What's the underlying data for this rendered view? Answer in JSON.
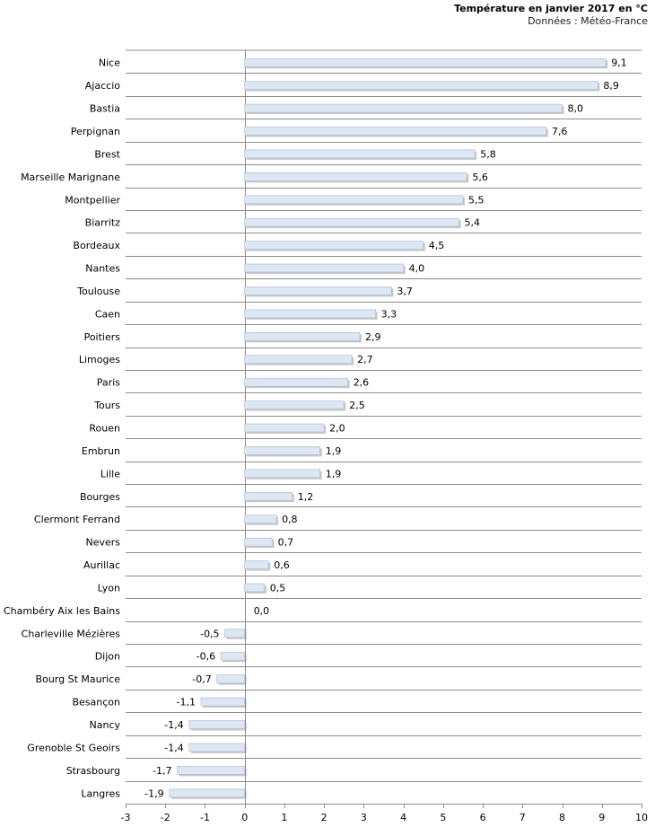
{
  "chart_data": {
    "type": "bar",
    "orientation": "horizontal",
    "title": "Température en janvier 2017 en °C",
    "subtitle": "Données : Météo-France",
    "xlabel": "",
    "ylabel": "",
    "xlim": [
      -3,
      10
    ],
    "xticks": [
      -3,
      -2,
      -1,
      0,
      1,
      2,
      3,
      4,
      5,
      6,
      7,
      8,
      9,
      10
    ],
    "xtick_labels": [
      "-3",
      "-2",
      "-1",
      "0",
      "1",
      "2",
      "3",
      "4",
      "5",
      "6",
      "7",
      "8",
      "9",
      "10"
    ],
    "grid": "horizontal lines between categories",
    "categories": [
      "Nice",
      "Ajaccio",
      "Bastia",
      "Perpignan",
      "Brest",
      "Marseille Marignane",
      "Montpellier",
      "Biarritz",
      "Bordeaux",
      "Nantes",
      "Toulouse",
      "Caen",
      "Poitiers",
      "Limoges",
      "Paris",
      "Tours",
      "Rouen",
      "Embrun",
      "Lille",
      "Bourges",
      "Clermont Ferrand",
      "Nevers",
      "Aurillac",
      "Lyon",
      "Chambéry Aix les Bains",
      "Charleville Mézières",
      "Dijon",
      "Bourg St Maurice",
      "Besançon",
      "Nancy",
      "Grenoble St Geoirs",
      "Strasbourg",
      "Langres"
    ],
    "values": [
      9.1,
      8.9,
      8.0,
      7.6,
      5.8,
      5.6,
      5.5,
      5.4,
      4.5,
      4.0,
      3.7,
      3.3,
      2.9,
      2.7,
      2.6,
      2.5,
      2.0,
      1.9,
      1.9,
      1.2,
      0.8,
      0.7,
      0.6,
      0.5,
      0.0,
      -0.5,
      -0.6,
      -0.7,
      -1.1,
      -1.4,
      -1.4,
      -1.7,
      -1.9
    ],
    "value_labels": [
      "9,1",
      "8,9",
      "8,0",
      "7,6",
      "5,8",
      "5,6",
      "5,5",
      "5,4",
      "4,5",
      "4,0",
      "3,7",
      "3,3",
      "2,9",
      "2,7",
      "2,6",
      "2,5",
      "2,0",
      "1,9",
      "1,9",
      "1,2",
      "0,8",
      "0,7",
      "0,6",
      "0,5",
      "0,0",
      "-0,5",
      "-0,6",
      "-0,7",
      "-1,1",
      "-1,4",
      "-1,4",
      "-1,7",
      "-1,9"
    ],
    "colors": {
      "bar_fill": "#dde6f3",
      "bar_edge": "#a9b9d0",
      "bar_shadow": "#9a9a9a",
      "grid": "#8c8c8c",
      "axis": "#8c8c8c",
      "zero_line": "#8c8c8c"
    }
  }
}
